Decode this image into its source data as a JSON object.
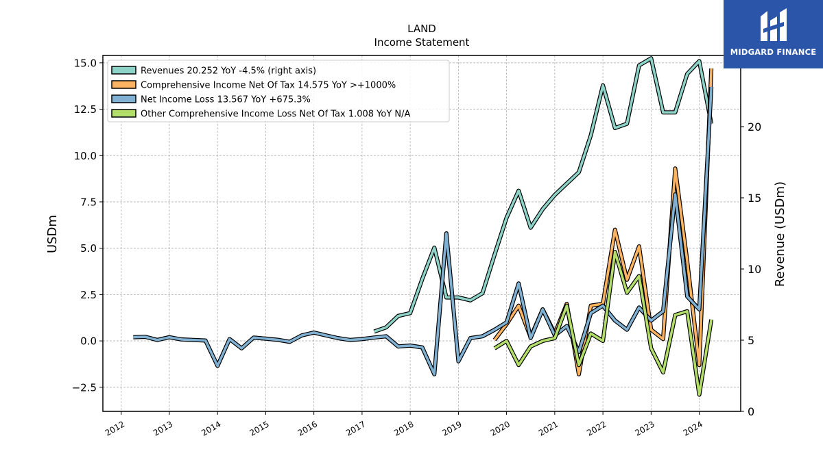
{
  "chart_data": {
    "type": "line",
    "title": "LAND",
    "subtitle": "Income Statement",
    "ylabel": "USDm",
    "y2label": "Revenue (USDm)",
    "ylim": [
      -3.8,
      15.4
    ],
    "y2lim": [
      0,
      25
    ],
    "xlim": [
      2011.62,
      2024.86
    ],
    "yticks": [
      -2.5,
      0.0,
      2.5,
      5.0,
      7.5,
      10.0,
      12.5,
      15.0
    ],
    "yticklabels": [
      "−2.5",
      "0.0",
      "2.5",
      "5.0",
      "7.5",
      "10.0",
      "12.5",
      "15.0"
    ],
    "y2ticks": [
      0,
      5,
      10,
      15,
      20,
      25
    ],
    "y2ticklabels": [
      "0",
      "5",
      "10",
      "15",
      "20",
      "25"
    ],
    "xticks": [
      2012,
      2013,
      2014,
      2015,
      2016,
      2017,
      2018,
      2019,
      2020,
      2021,
      2022,
      2023,
      2024
    ],
    "xticklabels": [
      "2012",
      "2013",
      "2014",
      "2015",
      "2016",
      "2017",
      "2018",
      "2019",
      "2020",
      "2021",
      "2022",
      "2023",
      "2024"
    ],
    "grid": true,
    "legend_position": "top-left",
    "series": [
      {
        "name": "Revenues  20.252 YoY -4.5% (right axis)",
        "axis": "right",
        "color": "#8dd3c7",
        "x": [
          2017.25,
          2017.5,
          2017.75,
          2018.0,
          2018.25,
          2018.5,
          2018.75,
          2019.0,
          2019.25,
          2019.5,
          2019.75,
          2020.0,
          2020.25,
          2020.5,
          2020.75,
          2021.0,
          2021.25,
          2021.5,
          2021.75,
          2022.0,
          2022.25,
          2022.5,
          2022.75,
          2023.0,
          2023.25,
          2023.5,
          2023.75,
          2024.0,
          2024.25
        ],
        "values": [
          5.6,
          5.9,
          6.7,
          6.9,
          9.3,
          11.5,
          8.0,
          8.0,
          7.8,
          8.3,
          11.0,
          13.6,
          15.5,
          12.9,
          14.2,
          15.2,
          16.0,
          16.8,
          19.4,
          22.9,
          19.9,
          20.2,
          24.3,
          24.8,
          21.0,
          21.0,
          23.7,
          24.6,
          20.2
        ]
      },
      {
        "name": "Comprehensive Income Net Of Tax  14.575 YoY >+1000%",
        "axis": "left",
        "color": "#fdb462",
        "x": [
          2019.75,
          2020.0,
          2020.25,
          2020.5,
          2020.75,
          2021.0,
          2021.25,
          2021.5,
          2021.75,
          2022.0,
          2022.25,
          2022.5,
          2022.75,
          2023.0,
          2023.25,
          2023.5,
          2023.75,
          2024.0,
          2024.25
        ],
        "values": [
          0.05,
          0.9,
          1.9,
          0.2,
          1.7,
          0.4,
          2.0,
          -1.8,
          1.9,
          2.0,
          6.0,
          3.3,
          5.1,
          0.6,
          0.1,
          9.3,
          4.3,
          -1.3,
          14.7
        ]
      },
      {
        "name": "Net Income Loss  13.567 YoY +675.3%",
        "axis": "left",
        "color": "#80b1d3",
        "x": [
          2012.25,
          2012.5,
          2012.75,
          2013.0,
          2013.25,
          2013.5,
          2013.75,
          2014.0,
          2014.25,
          2014.5,
          2014.75,
          2015.0,
          2015.25,
          2015.5,
          2015.75,
          2016.0,
          2016.25,
          2016.5,
          2016.75,
          2017.0,
          2017.25,
          2017.5,
          2017.75,
          2018.0,
          2018.25,
          2018.5,
          2018.75,
          2019.0,
          2019.25,
          2019.5,
          2019.75,
          2020.0,
          2020.25,
          2020.5,
          2020.75,
          2021.0,
          2021.25,
          2021.5,
          2021.75,
          2022.0,
          2022.25,
          2022.5,
          2022.75,
          2023.0,
          2023.25,
          2023.5,
          2023.75,
          2024.0,
          2024.25
        ],
        "values": [
          0.2,
          0.22,
          0.05,
          0.2,
          0.08,
          0.05,
          0.02,
          -1.35,
          0.1,
          -0.4,
          0.18,
          0.12,
          0.06,
          -0.05,
          0.3,
          0.45,
          0.3,
          0.15,
          0.05,
          0.1,
          0.18,
          0.25,
          -0.3,
          -0.25,
          -0.35,
          -1.8,
          5.8,
          -1.1,
          0.15,
          0.25,
          0.6,
          1.0,
          3.1,
          0.15,
          1.7,
          0.3,
          0.8,
          -0.6,
          1.5,
          1.9,
          1.1,
          0.6,
          1.8,
          1.1,
          1.6,
          7.9,
          2.4,
          1.7,
          13.7
        ]
      },
      {
        "name": "Other Comprehensive Income Loss Net Of Tax  1.008 YoY N/A",
        "axis": "left",
        "color": "#b3de69",
        "x": [
          2019.75,
          2020.0,
          2020.25,
          2020.5,
          2020.75,
          2021.0,
          2021.25,
          2021.5,
          2021.75,
          2022.0,
          2022.25,
          2022.5,
          2022.75,
          2023.0,
          2023.25,
          2023.5,
          2023.75,
          2024.0,
          2024.25
        ],
        "values": [
          -0.4,
          0.0,
          -1.3,
          -0.3,
          0.0,
          0.15,
          1.9,
          -1.3,
          0.4,
          0.0,
          4.8,
          2.6,
          3.5,
          -0.4,
          -1.7,
          1.4,
          1.6,
          -2.9,
          1.15
        ]
      }
    ]
  },
  "logo": {
    "text": "MIDGARD FINANCE",
    "color": "#2a55a8"
  }
}
